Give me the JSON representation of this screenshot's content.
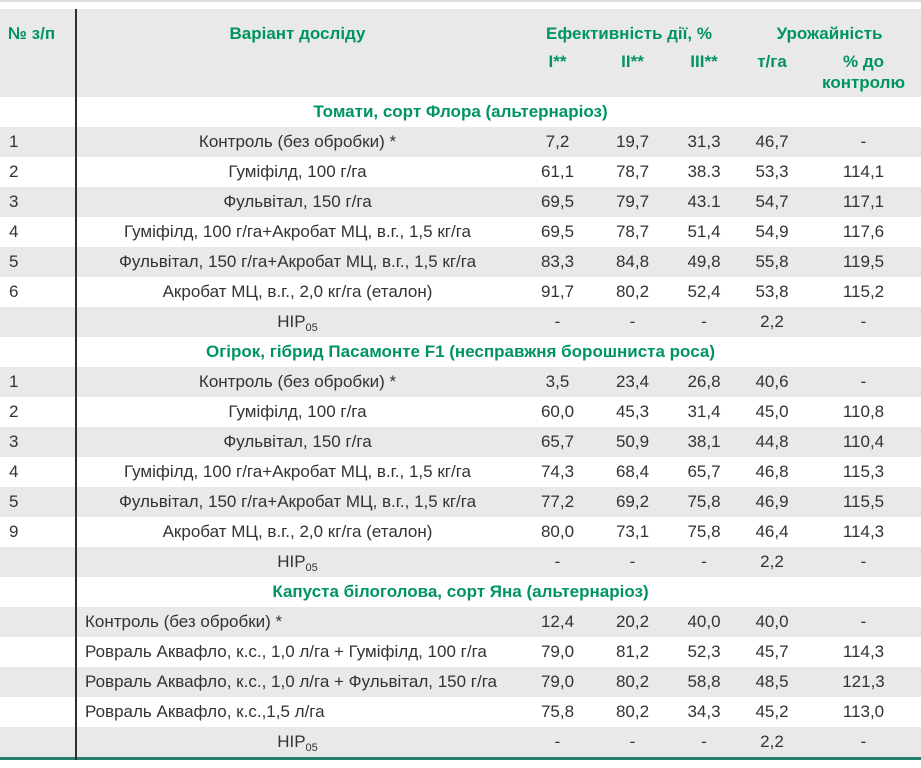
{
  "colors": {
    "accent_green": "#00955E",
    "row_shade": "#E9E9E9",
    "header_bg": "#E9E9E9",
    "divider_dark": "#2F2F2F",
    "bottom_rule_teal": "#26806B",
    "top_rule_gray": "#E0E0E0",
    "text": "#333333"
  },
  "header": {
    "col_num": "№ з/п",
    "col_variant": "Варіант досліду",
    "group_efficiency": "Ефективність дії, %",
    "group_yield": "Урожайність",
    "sub_i": "I**",
    "sub_ii": "II**",
    "sub_iii": "III**",
    "sub_t_ha": "т/га",
    "sub_pct_control": "% до контролю"
  },
  "sections": [
    {
      "title": "Томати, сорт Флора (альтернаріоз)",
      "variant_align": "center",
      "rows": [
        {
          "num": "1",
          "variant": "Контроль (без обробки) *",
          "eff_i": "7,2",
          "eff_ii": "19,7",
          "eff_iii": "31,3",
          "t_ha": "46,7",
          "pct": "-",
          "shaded": true
        },
        {
          "num": "2",
          "variant": "Гуміфілд, 100 г/га",
          "eff_i": "61,1",
          "eff_ii": "78,7",
          "eff_iii": "38.3",
          "t_ha": "53,3",
          "pct": "114,1",
          "shaded": false
        },
        {
          "num": "3",
          "variant": "Фульвітал, 150 г/га",
          "eff_i": "69,5",
          "eff_ii": "79,7",
          "eff_iii": "43.1",
          "t_ha": "54,7",
          "pct": "117,1",
          "shaded": true
        },
        {
          "num": "4",
          "variant": "Гуміфілд, 100 г/га+Акробат МЦ, в.г., 1,5 кг/га",
          "eff_i": "69,5",
          "eff_ii": "78,7",
          "eff_iii": "51,4",
          "t_ha": "54,9",
          "pct": "117,6",
          "shaded": false
        },
        {
          "num": "5",
          "variant": "Фульвітал, 150 г/га+Акробат МЦ, в.г., 1,5 кг/га",
          "eff_i": "83,3",
          "eff_ii": "84,8",
          "eff_iii": "49,8",
          "t_ha": "55,8",
          "pct": "119,5",
          "shaded": true
        },
        {
          "num": "6",
          "variant": "Акробат МЦ, в.г., 2,0 кг/га (еталон)",
          "eff_i": "91,7",
          "eff_ii": "80,2",
          "eff_iii": "52,4",
          "t_ha": "53,8",
          "pct": "115,2",
          "shaded": false
        },
        {
          "num": "",
          "variant": "НІР",
          "variant_sub": "05",
          "align": "center",
          "eff_i": "-",
          "eff_ii": "-",
          "eff_iii": "-",
          "t_ha": "2,2",
          "pct": "-",
          "shaded": true
        }
      ]
    },
    {
      "title": "Огірок, гібрид Пасамонте F1 (несправжня борошниста роса)",
      "variant_align": "center",
      "rows": [
        {
          "num": "1",
          "variant": "Контроль (без обробки) *",
          "eff_i": "3,5",
          "eff_ii": "23,4",
          "eff_iii": "26,8",
          "t_ha": "40,6",
          "pct": "-",
          "shaded": true
        },
        {
          "num": "2",
          "variant": "Гуміфілд, 100 г/га",
          "eff_i": "60,0",
          "eff_ii": "45,3",
          "eff_iii": "31,4",
          "t_ha": "45,0",
          "pct": "110,8",
          "shaded": false
        },
        {
          "num": "3",
          "variant": "Фульвітал, 150 г/га",
          "eff_i": "65,7",
          "eff_ii": "50,9",
          "eff_iii": "38,1",
          "t_ha": "44,8",
          "pct": "110,4",
          "shaded": true
        },
        {
          "num": "4",
          "variant": "Гуміфілд, 100 г/га+Акробат МЦ, в.г., 1,5 кг/га",
          "eff_i": "74,3",
          "eff_ii": "68,4",
          "eff_iii": "65,7",
          "t_ha": "46,8",
          "pct": "115,3",
          "shaded": false
        },
        {
          "num": "5",
          "variant": "Фульвітал, 150 г/га+Акробат МЦ, в.г., 1,5 кг/га",
          "eff_i": "77,2",
          "eff_ii": "69,2",
          "eff_iii": "75,8",
          "t_ha": "46,9",
          "pct": "115,5",
          "shaded": true
        },
        {
          "num": "9",
          "variant": "Акробат МЦ, в.г., 2,0 кг/га (еталон)",
          "eff_i": "80,0",
          "eff_ii": "73,1",
          "eff_iii": "75,8",
          "t_ha": "46,4",
          "pct": "114,3",
          "shaded": false
        },
        {
          "num": "",
          "variant": "НІР",
          "variant_sub": "05",
          "align": "center",
          "eff_i": "-",
          "eff_ii": "-",
          "eff_iii": "-",
          "t_ha": "2,2",
          "pct": "-",
          "shaded": true
        }
      ]
    },
    {
      "title": "Капуста білоголова, сорт Яна (альтернаріоз)",
      "variant_align": "left",
      "rows": [
        {
          "num": "",
          "variant": "Контроль (без обробки) *",
          "eff_i": "12,4",
          "eff_ii": "20,2",
          "eff_iii": "40,0",
          "t_ha": "40,0",
          "pct": "-",
          "shaded": true
        },
        {
          "num": "",
          "variant": "Ровраль Аквафло, к.с., 1,0 л/га + Гуміфілд, 100 г/га",
          "eff_i": "79,0",
          "eff_ii": "81,2",
          "eff_iii": "52,3",
          "t_ha": "45,7",
          "pct": "114,3",
          "shaded": false
        },
        {
          "num": "",
          "variant": "Ровраль Аквафло, к.с., 1,0 л/га + Фульвітал, 150 г/га",
          "eff_i": "79,0",
          "eff_ii": "80,2",
          "eff_iii": "58,8",
          "t_ha": "48,5",
          "pct": "121,3",
          "shaded": true
        },
        {
          "num": "",
          "variant": "Ровраль Аквафло, к.с.,1,5 л/га",
          "eff_i": "75,8",
          "eff_ii": "80,2",
          "eff_iii": "34,3",
          "t_ha": "45,2",
          "pct": "113,0",
          "shaded": false
        },
        {
          "num": "",
          "variant": "НІР",
          "variant_sub": "05",
          "align": "center",
          "eff_i": "-",
          "eff_ii": "-",
          "eff_iii": "-",
          "t_ha": "2,2",
          "pct": "-",
          "shaded": true
        }
      ]
    }
  ]
}
